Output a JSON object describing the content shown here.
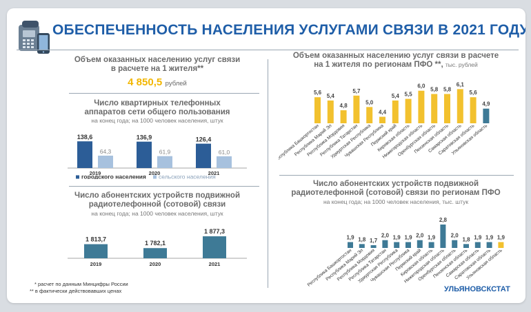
{
  "title": "ОБЕСПЕЧЕННОСТЬ НАСЕЛЕНИЯ УСЛУГАМИ СВЯЗИ В 2021 ГОДУ*",
  "services_per_capita": {
    "title_line1": "Объем оказанных населению услуг связи",
    "title_line2": "в расчете на 1 жителя**",
    "value": "4 850,5",
    "unit": "рублей"
  },
  "chart_data": [
    {
      "id": "landline",
      "type": "bar",
      "title_line1": "Число квартирных телефонных",
      "title_line2": "аппаратов сети общего пользования",
      "subtitle": "на конец года; на 1000 человек населения, штук",
      "categories": [
        "2019",
        "2020",
        "2021"
      ],
      "series": [
        {
          "name": "городского населения",
          "color": "#2c5d97",
          "values": [
            138.6,
            136.9,
            126.4
          ],
          "labels": [
            "138,6",
            "136,9",
            "126,4"
          ]
        },
        {
          "name": "сельского населения",
          "color": "#a7c1de",
          "values": [
            64.3,
            61.9,
            61.0
          ],
          "labels": [
            "64,3",
            "61,9",
            "61,0"
          ]
        }
      ],
      "legend": [
        "городского населения",
        "сельского населения"
      ],
      "ylim": [
        0,
        150
      ]
    },
    {
      "id": "mobile",
      "type": "bar",
      "title_line1": "Число абонентских устройств подвижной",
      "title_line2": "радиотелефонной (сотовой) связи",
      "subtitle": "на конец года; на 1000 человек населения, штук",
      "categories": [
        "2019",
        "2020",
        "2021"
      ],
      "values": [
        1813.7,
        1782.1,
        1877.3
      ],
      "labels": [
        "1 813,7",
        "1 782,1",
        "1 877,3"
      ],
      "color": "#3e7a96",
      "ylim": [
        1700,
        1900
      ]
    },
    {
      "id": "regions_services",
      "type": "bar",
      "title_line1": "Объем оказанных населению услуг связи в расчете",
      "title_line2": "на 1 жителя по регионам ПФО **,",
      "title_unit": "тыс. рублей",
      "categories": [
        "Республика Башкортостан",
        "Республика Марий Эл",
        "Республика Мордовия",
        "Республика Татарстан",
        "Удмуртская Республика",
        "Чувашская Республика",
        "Пермский край",
        "Кировская область",
        "Нижегородская область",
        "Оренбургская область",
        "Пензенская область",
        "Самарская область",
        "Саратовская область",
        "Ульяновская область"
      ],
      "values": [
        5.6,
        5.4,
        4.8,
        5.7,
        5.0,
        4.4,
        5.4,
        5.5,
        6.0,
        5.8,
        5.8,
        6.1,
        5.6,
        4.9
      ],
      "labels": [
        "5,6",
        "5,4",
        "4,8",
        "5,7",
        "5,0",
        "4,4",
        "5,4",
        "5,5",
        "6,0",
        "5,8",
        "5,8",
        "6,1",
        "5,6",
        "4,9"
      ],
      "colors": [
        "#f2c12e",
        "#f2c12e",
        "#f2c12e",
        "#f2c12e",
        "#f2c12e",
        "#f2c12e",
        "#f2c12e",
        "#f2c12e",
        "#f2c12e",
        "#f2c12e",
        "#f2c12e",
        "#f2c12e",
        "#f2c12e",
        "#3e7a96"
      ],
      "ylim": [
        4.0,
        6.2
      ]
    },
    {
      "id": "regions_mobile",
      "type": "bar",
      "title_line1": "Число абонентских устройств подвижной",
      "title_line2": "радиотелефонной (сотовой) связи по регионам ПФО",
      "subtitle": "на конец года; на 1000 человек населения, тыс. штук",
      "categories": [
        "Республика Башкортостан",
        "Республика Марий Эл",
        "Республика Мордовия",
        "Республика Татарстан",
        "Удмуртская Республика",
        "Чувашская Республика",
        "Пермский край",
        "Кировская область",
        "Нижегородская область",
        "Оренбургская область",
        "Пензенская область",
        "Самарская область",
        "Саратовская область",
        "Ульяновская область"
      ],
      "values": [
        1.9,
        1.8,
        1.7,
        2.0,
        1.9,
        1.9,
        2.0,
        1.9,
        2.8,
        2.0,
        1.8,
        1.9,
        1.9,
        1.9
      ],
      "labels": [
        "1,9",
        "1,8",
        "1,7",
        "2,0",
        "1,9",
        "1,9",
        "2,0",
        "1,9",
        "2,8",
        "2,0",
        "1,8",
        "1,9",
        "1,9",
        "1,9"
      ],
      "colors": [
        "#3e7a96",
        "#3e7a96",
        "#3e7a96",
        "#3e7a96",
        "#3e7a96",
        "#3e7a96",
        "#3e7a96",
        "#3e7a96",
        "#3e7a96",
        "#3e7a96",
        "#3e7a96",
        "#3e7a96",
        "#3e7a96",
        "#f2c12e"
      ],
      "ylim": [
        1.6,
        2.8
      ]
    }
  ],
  "footnotes": [
    "* расчет по данным Минцифры России",
    "** в фактически действовавших ценах"
  ],
  "brand": "УЛЬЯНОВСКСТАТ",
  "icons": [
    "phone-icon",
    "mobile-phone-icon"
  ]
}
